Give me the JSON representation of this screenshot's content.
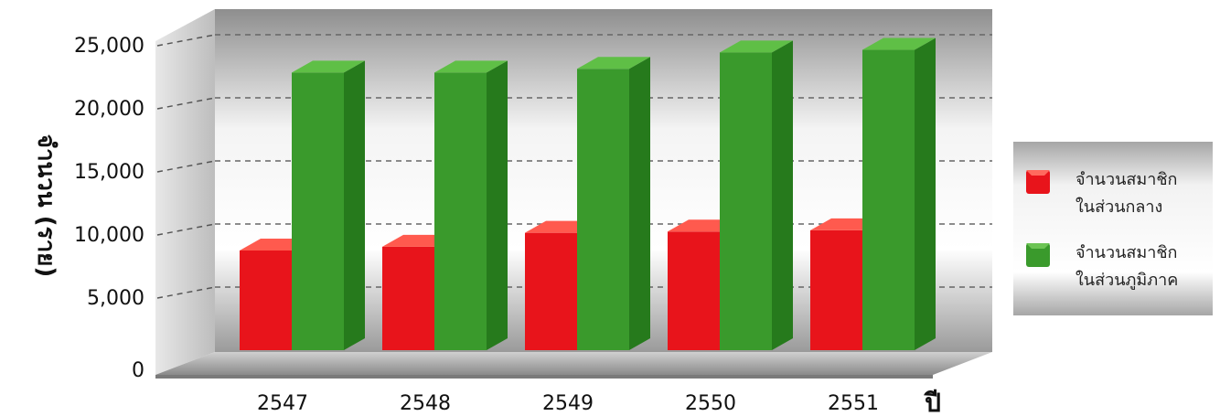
{
  "chart_data": {
    "type": "bar",
    "categories": [
      "2547",
      "2548",
      "2549",
      "2550",
      "2551"
    ],
    "series": [
      {
        "name": "จำนวนสมาชิกในส่วนกลาง",
        "legend_lines": [
          "จำนวนสมาชิก",
          "ในส่วนกลาง"
        ],
        "color": "#e8141b",
        "values": [
          7900,
          8200,
          9300,
          9400,
          9500
        ]
      },
      {
        "name": "จำนวนสมาชิกในส่วนภูมิภาค",
        "legend_lines": [
          "จำนวนสมาชิก",
          "ในส่วนภูมิภาค"
        ],
        "color": "#3a9a2c",
        "values": [
          22000,
          22000,
          22300,
          23600,
          23800
        ]
      }
    ],
    "yticks": [
      "0",
      "5,000",
      "10,000",
      "15,000",
      "20,000",
      "25,000"
    ],
    "title": "",
    "xlabel": "ปี",
    "ylabel": "จำนวน (ราย)",
    "ylim": [
      0,
      25000
    ],
    "grid": true,
    "legend_position": "right"
  }
}
